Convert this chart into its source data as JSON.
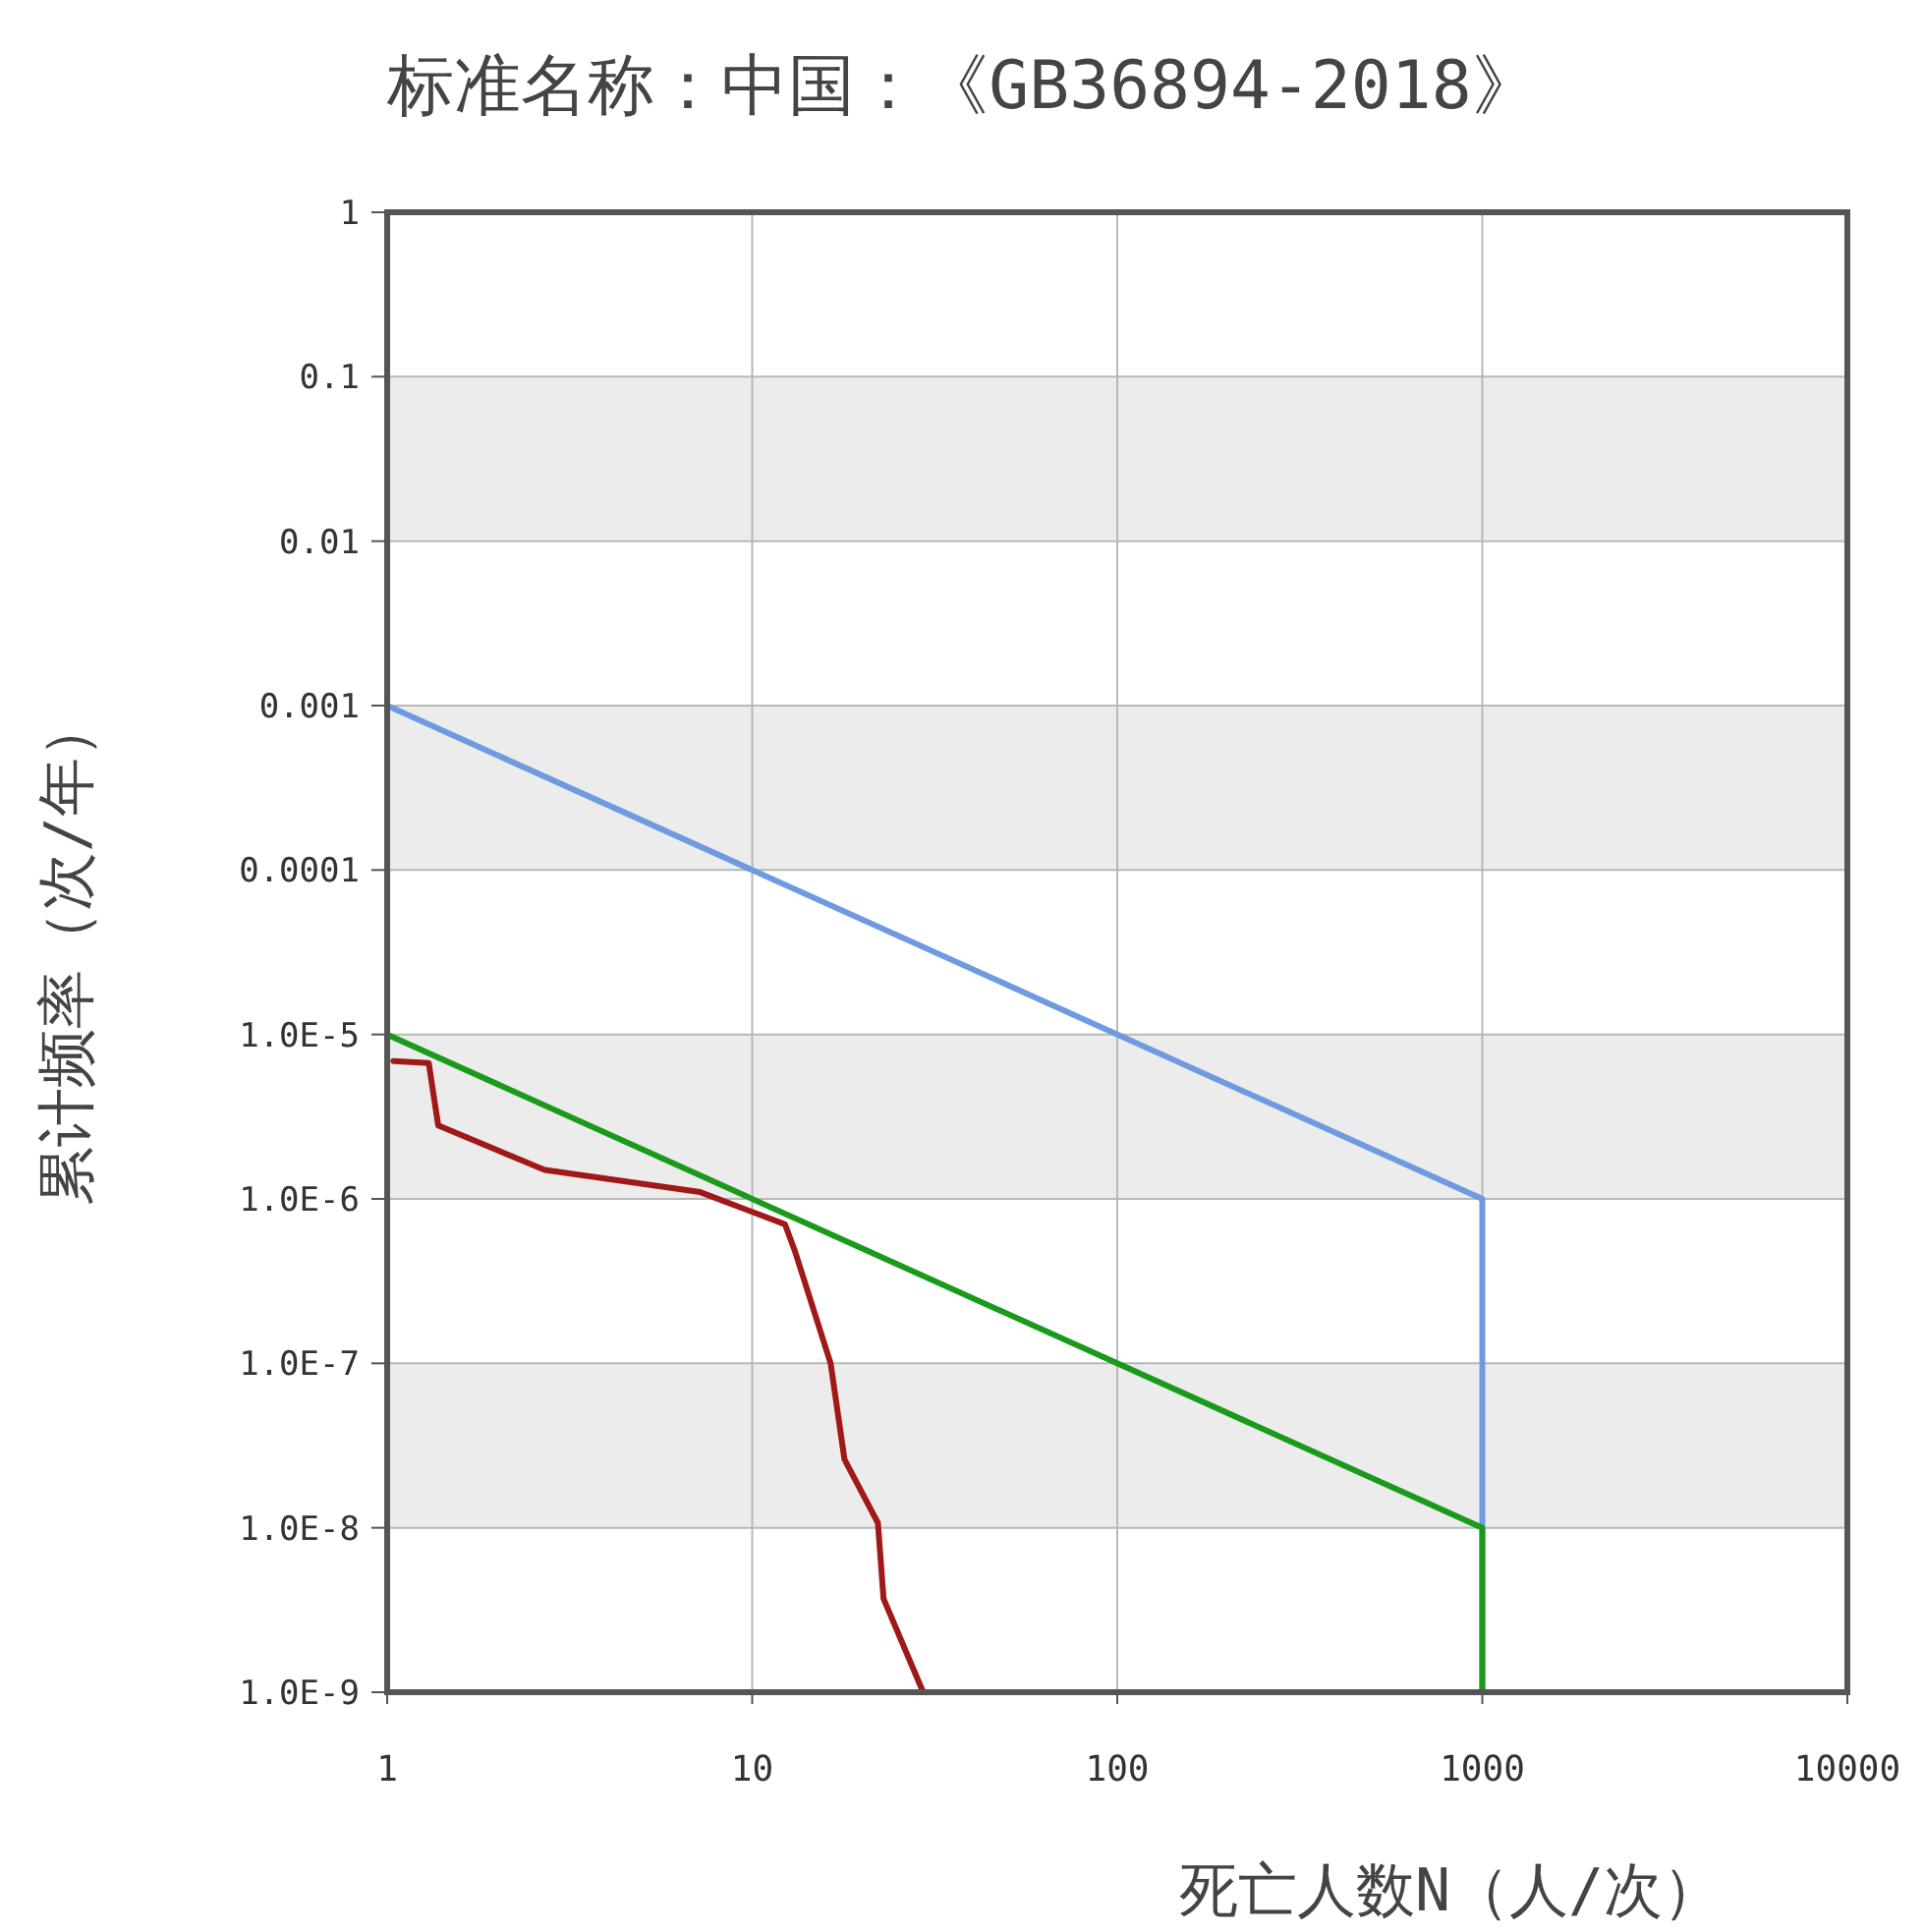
{
  "chart_data": {
    "type": "line",
    "title": "标准名称：中国：《GB36894-2018》",
    "xlabel": "死亡人数N（人/次）",
    "ylabel": "累计频率（次/年）",
    "log": "xy",
    "grid": true,
    "xlim": [
      1,
      10000
    ],
    "xticks": [
      1,
      10,
      100,
      1000,
      10000
    ],
    "ylim": [
      1e-09,
      1
    ],
    "yticks": [
      1,
      0.1,
      0.01,
      0.001,
      0.0001,
      {
        "value": 1e-05,
        "label": "1.0E-5"
      },
      {
        "value": 1e-06,
        "label": "1.0E-6"
      },
      {
        "value": 1e-07,
        "label": "1.0E-7"
      },
      {
        "value": 1e-08,
        "label": "1.0E-8"
      },
      {
        "value": 1e-09,
        "label": "1.0E-9"
      }
    ],
    "bands": [
      {
        "axis": "y",
        "from": 0.01,
        "to": 0.1,
        "color": "#ececec"
      },
      {
        "axis": "y",
        "from": 0.0001,
        "to": 0.001,
        "color": "#ececec"
      },
      {
        "axis": "y",
        "from": 1e-06,
        "to": 1e-05,
        "color": "#ececec"
      },
      {
        "axis": "y",
        "from": 1e-08,
        "to": 1e-07,
        "color": "#ececec"
      }
    ],
    "series": [
      {
        "color": "#6f9ae0",
        "x": [
          1,
          1000,
          1000
        ],
        "values": [
          0.001,
          1e-06,
          1e-09
        ]
      },
      {
        "color": "#1a9a1a",
        "x": [
          1,
          1000,
          1000
        ],
        "values": [
          1e-05,
          1e-08,
          1e-09
        ]
      },
      {
        "color": "#a01818",
        "x": [
          1.04,
          1.3,
          1.38,
          2.7,
          7.2,
          12.3,
          13.1,
          16.4,
          17.9,
          22.1,
          22.9,
          29.4
        ],
        "values": [
          6.9e-06,
          6.7e-06,
          2.8e-06,
          1.5e-06,
          1.1e-06,
          7e-07,
          4.8e-07,
          1e-07,
          2.6e-08,
          1.07e-08,
          3.7e-09,
          1e-09
        ]
      }
    ]
  }
}
